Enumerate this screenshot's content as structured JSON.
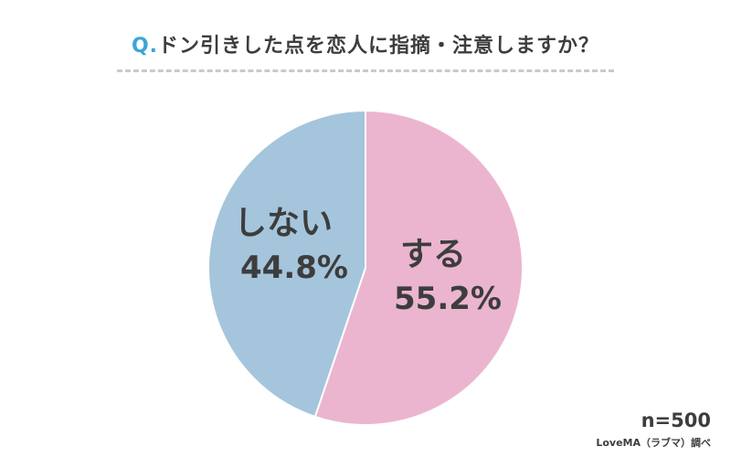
{
  "title": {
    "prefix": "Q.",
    "text": "ドン引きした点を恋人に指摘・注意しますか？"
  },
  "sample_size": "n=500",
  "source": "LoveMA（ラブマ）調べ",
  "colors": {
    "accent": "#3aa6d9",
    "suru": "#ebb5cf",
    "shinai": "#a5c5dc"
  },
  "chart_data": {
    "type": "pie",
    "title": "ドン引きした点を恋人に指摘・注意しますか？",
    "slices": [
      {
        "label": "する",
        "value": 55.2,
        "display": "55.2%",
        "color": "#ebb5cf"
      },
      {
        "label": "しない",
        "value": 44.8,
        "display": "44.8%",
        "color": "#a5c5dc"
      }
    ],
    "start": "12 o'clock",
    "direction": "clockwise",
    "legend": "none"
  }
}
